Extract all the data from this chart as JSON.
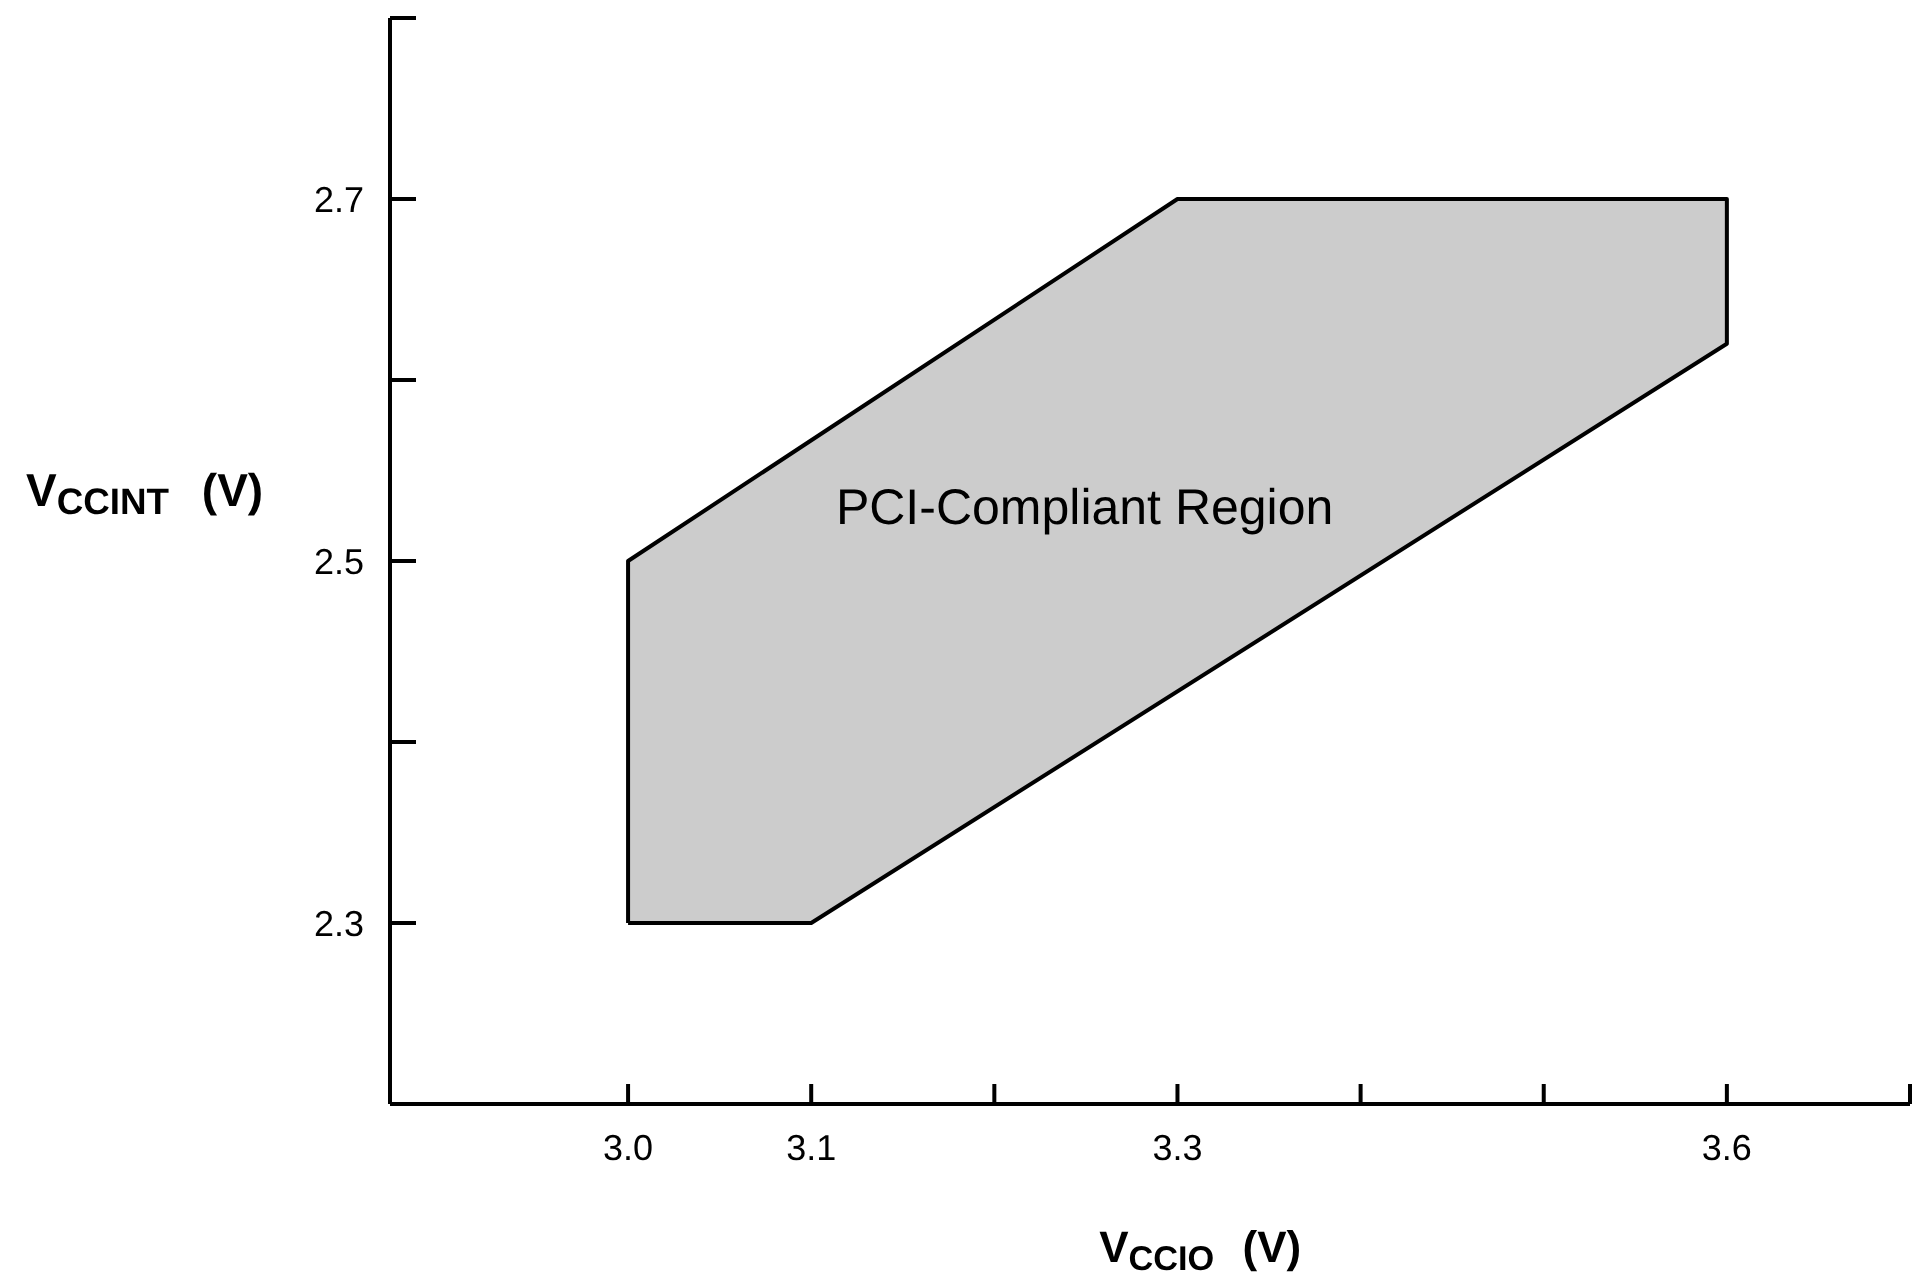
{
  "chart_data": {
    "type": "area",
    "xlabel": "V$_{CCIO}$ (V)",
    "ylabel": "V$_{CCINT}$ (V)",
    "x": [
      3.0,
      3.1,
      3.6,
      3.6,
      3.3,
      3.0,
      3.0
    ],
    "values": [
      2.3,
      2.3,
      2.62,
      2.7,
      2.7,
      2.5,
      2.3
    ],
    "color": "#cccccc",
    "xlim": [
      2.87,
      3.7
    ],
    "xticks": [
      {
        "value": 3,
        "label": "3.0"
      },
      3.1,
      {
        "value": 3.2,
        "label": null
      },
      3.3,
      {
        "value": 3.4,
        "label": null
      },
      {
        "value": 3.5,
        "label": null
      },
      3.6,
      {
        "value": 3.7,
        "label": null
      }
    ],
    "ylim": [
      2.2,
      2.8
    ],
    "yticks": [
      2.3,
      {
        "value": 2.4,
        "label": null
      },
      2.5,
      {
        "value": 2.6,
        "label": null
      },
      2.7,
      {
        "value": 2.8,
        "label": null
      }
    ],
    "annotations": [
      "PCI-Compliant Region"
    ]
  }
}
